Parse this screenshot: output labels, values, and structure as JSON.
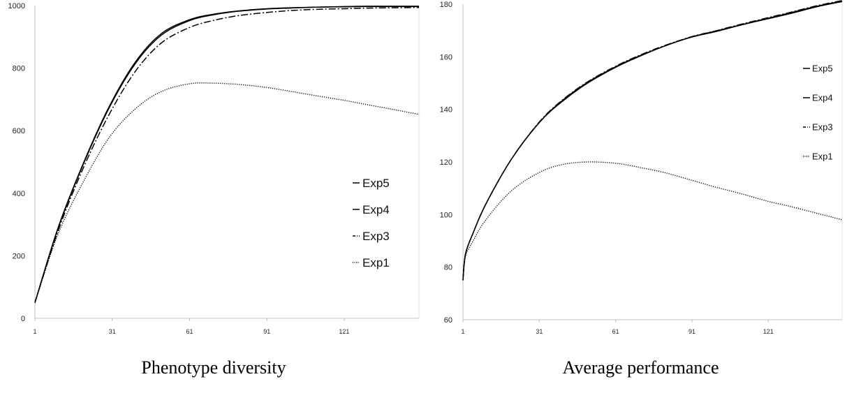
{
  "chart_data": [
    {
      "type": "line",
      "title": "Phenotype diversity",
      "xlabel": "",
      "ylabel": "",
      "xlim": [
        1,
        150
      ],
      "ylim": [
        0,
        1000
      ],
      "x_ticks": [
        1,
        31,
        61,
        91,
        121
      ],
      "y_ticks": [
        0,
        200,
        400,
        600,
        800,
        1000
      ],
      "grid": false,
      "legend_position": "right",
      "legend_order": [
        "Exp5",
        "Exp4",
        "Exp3",
        "Exp1"
      ],
      "series": [
        {
          "name": "Exp5",
          "style": "solid",
          "color": "#000000",
          "x": [
            1,
            10,
            20,
            30,
            40,
            50,
            61,
            70,
            80,
            91,
            100,
            110,
            121,
            130,
            140,
            150
          ],
          "y": [
            50,
            290,
            500,
            680,
            820,
            910,
            955,
            972,
            983,
            990,
            993,
            995,
            997,
            998,
            998,
            998
          ]
        },
        {
          "name": "Exp4",
          "style": "solid",
          "color": "#000000",
          "x": [
            1,
            10,
            20,
            30,
            40,
            50,
            61,
            70,
            80,
            91,
            100,
            110,
            121,
            130,
            140,
            150
          ],
          "y": [
            50,
            288,
            497,
            676,
            815,
            905,
            952,
            970,
            982,
            989,
            992,
            995,
            996,
            997,
            997,
            997
          ]
        },
        {
          "name": "Exp3",
          "style": "dashdot",
          "color": "#000000",
          "x": [
            1,
            10,
            20,
            30,
            40,
            50,
            61,
            70,
            80,
            91,
            100,
            110,
            121,
            130,
            140,
            150
          ],
          "y": [
            50,
            280,
            485,
            655,
            790,
            880,
            930,
            952,
            968,
            978,
            984,
            988,
            990,
            992,
            993,
            994
          ]
        },
        {
          "name": "Exp1",
          "style": "dotted",
          "color": "#000000",
          "x": [
            1,
            10,
            20,
            30,
            40,
            50,
            61,
            70,
            80,
            91,
            100,
            110,
            121,
            130,
            140,
            150
          ],
          "y": [
            50,
            270,
            440,
            580,
            670,
            725,
            750,
            752,
            748,
            738,
            726,
            712,
            697,
            683,
            668,
            652
          ]
        }
      ]
    },
    {
      "type": "line",
      "title": "Average performance",
      "xlabel": "",
      "ylabel": "",
      "xlim": [
        1,
        150
      ],
      "ylim": [
        60,
        180
      ],
      "x_ticks": [
        1,
        31,
        61,
        91,
        121
      ],
      "y_ticks": [
        60,
        80,
        100,
        120,
        140,
        160,
        180
      ],
      "grid": false,
      "legend_position": "top-right",
      "legend_order": [
        "Exp5",
        "Exp4",
        "Exp3",
        "Exp1"
      ],
      "series": [
        {
          "name": "Exp5",
          "style": "solid",
          "color": "#000000",
          "x": [
            1,
            2,
            5,
            10,
            20,
            31,
            40,
            50,
            61,
            70,
            80,
            91,
            100,
            110,
            121,
            130,
            140,
            150
          ],
          "y": [
            75,
            85,
            93,
            104,
            121,
            135,
            143,
            150,
            156,
            160,
            164,
            167.5,
            169.5,
            172,
            174.5,
            176.5,
            179,
            181
          ]
        },
        {
          "name": "Exp4",
          "style": "solid",
          "color": "#000000",
          "x": [
            1,
            2,
            5,
            10,
            20,
            31,
            40,
            50,
            61,
            70,
            80,
            91,
            100,
            110,
            121,
            130,
            140,
            150
          ],
          "y": [
            75,
            85,
            93,
            104,
            121,
            135,
            143.3,
            150.3,
            156.2,
            160.2,
            164,
            167.6,
            169.7,
            172.1,
            174.7,
            176.8,
            179.2,
            181.2
          ]
        },
        {
          "name": "Exp3",
          "style": "dashdot",
          "color": "#000000",
          "x": [
            1,
            2,
            5,
            10,
            20,
            31,
            40,
            50,
            61,
            70,
            80,
            91,
            100,
            110,
            121,
            130,
            140,
            150
          ],
          "y": [
            75,
            85,
            93,
            104,
            121,
            135.2,
            143.5,
            150.5,
            156.4,
            160.4,
            164.2,
            167.7,
            169.8,
            172.3,
            174.9,
            177,
            179.4,
            181.4
          ]
        },
        {
          "name": "Exp1",
          "style": "dotted",
          "color": "#000000",
          "x": [
            1,
            2,
            5,
            10,
            20,
            31,
            40,
            50,
            61,
            70,
            80,
            91,
            100,
            110,
            121,
            130,
            140,
            150
          ],
          "y": [
            75,
            84,
            90,
            98,
            109,
            116,
            119,
            120,
            119.5,
            118,
            116,
            113,
            110.5,
            108,
            105,
            103,
            100.5,
            98
          ]
        }
      ]
    }
  ]
}
